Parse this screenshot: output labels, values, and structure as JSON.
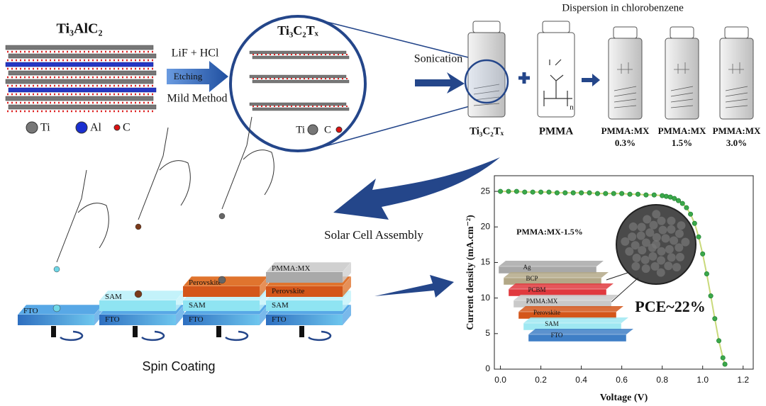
{
  "diagram": {
    "max_phase": {
      "formula": "Ti₃AlC₂",
      "legend": [
        "Ti",
        "Al",
        "C"
      ]
    },
    "etching": {
      "reagent": "LiF + HCl",
      "arrow_label": "Etching",
      "method": "Mild Method"
    },
    "mxene": {
      "formula": "Ti₃C₂Tₓ",
      "legend": [
        "Ti",
        "C"
      ]
    },
    "sonication": "Sonication",
    "dispersion_title": "Dispersion in chlorobenzene",
    "vials": [
      {
        "label": [
          "Ti₃C₂Tₓ"
        ]
      },
      {
        "label": [
          "PMMA"
        ],
        "subscript": "n"
      },
      {
        "label": [
          "PMMA:MX",
          "0.3%"
        ]
      },
      {
        "label": [
          "PMMA:MX",
          "1.5%"
        ]
      },
      {
        "label": [
          "PMMA:MX",
          "3.0%"
        ]
      }
    ],
    "assembly": "Solar Cell Assembly",
    "spin_coating": "Spin Coating",
    "stacks": [
      [
        "FTO"
      ],
      [
        "SAM",
        "FTO"
      ],
      [
        "Perovskite",
        "SAM",
        "FTO"
      ],
      [
        "PMMA:MX",
        "Perovskite",
        "SAM",
        "FTO"
      ]
    ]
  },
  "chart_data": {
    "type": "line",
    "markers": true,
    "color": "#3aa84a",
    "x_label": "Voltage (V)",
    "y_label": "Current density (mA.cm⁻²)",
    "xlim": [
      -0.03,
      1.25
    ],
    "ylim": [
      0,
      27.2
    ],
    "xticks": [
      {
        "value": 0,
        "label": "0.0"
      },
      0.2,
      0.4,
      0.6,
      0.8,
      {
        "value": 1,
        "label": "1.0"
      },
      1.2
    ],
    "yticks": [
      0,
      5,
      10,
      15,
      20,
      25
    ],
    "x": [
      0,
      0.04,
      0.08,
      0.12,
      0.16,
      0.2,
      0.24,
      0.28,
      0.32,
      0.36,
      0.4,
      0.44,
      0.48,
      0.52,
      0.56,
      0.6,
      0.64,
      0.68,
      0.72,
      0.76,
      0.8,
      0.82,
      0.84,
      0.86,
      0.88,
      0.9,
      0.92,
      0.94,
      0.96,
      0.98,
      1.0,
      1.02,
      1.04,
      1.06,
      1.08,
      1.1,
      1.11
    ],
    "values": [
      25.0,
      25.0,
      25.0,
      24.9,
      24.9,
      24.9,
      24.9,
      24.8,
      24.8,
      24.8,
      24.8,
      24.8,
      24.7,
      24.7,
      24.7,
      24.7,
      24.6,
      24.6,
      24.5,
      24.5,
      24.4,
      24.3,
      24.2,
      24.0,
      23.7,
      23.3,
      22.7,
      21.8,
      20.5,
      18.6,
      16.2,
      13.4,
      10.3,
      7.1,
      4.0,
      1.6,
      0.7
    ],
    "inset": {
      "title": "PMMA:MX-1.5%",
      "layers": [
        "Ag",
        "BCP",
        "PCBM",
        "PMMA:MX",
        "Perovskite",
        "SAM",
        "FTO"
      ],
      "annotation": "PCE~22%"
    }
  }
}
